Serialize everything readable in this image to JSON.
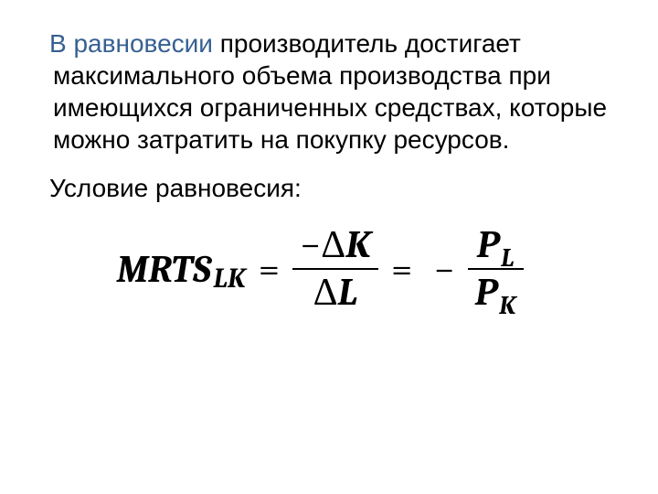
{
  "paragraph": {
    "highlight_text": "В равновесии",
    "rest_text": " производитель достигает максимального объема производства при имеющихся ограниченных средствах, которые можно затратить на покупку ресурсов.",
    "highlight_color": "#376092",
    "text_color": "#000000",
    "font_size": 28
  },
  "subheading": {
    "text": "Условие равновесия:",
    "text_color": "#000000",
    "font_size": 28
  },
  "formula": {
    "lhs_base": "MRTS",
    "lhs_sub": "LK",
    "equals": "=",
    "frac1_num_sign": "−",
    "frac1_num_delta": "Δ",
    "frac1_num_var": "K",
    "frac1_den_delta": "Δ",
    "frac1_den_var": "L",
    "rhs_minus": "−",
    "frac2_num_sym": "P",
    "frac2_num_sub": "L",
    "frac2_den_sym": "P",
    "frac2_den_sub": "K",
    "font_family": "Cambria",
    "font_size_main": 42,
    "font_size_sub": 28,
    "text_color": "#000000"
  }
}
